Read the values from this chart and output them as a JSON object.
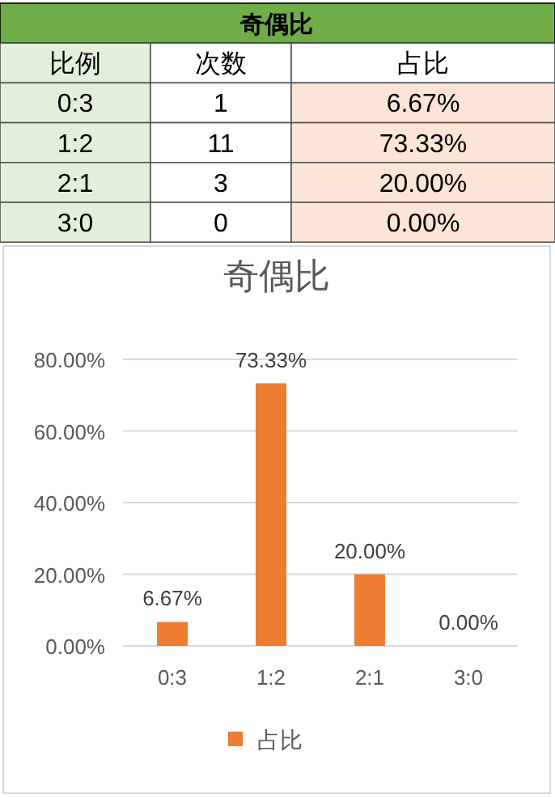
{
  "chart_data": [
    {
      "type": "other",
      "title": "奇偶比",
      "xlabel": "比例",
      "data_labels": true,
      "categories": [
        "0:3",
        "1:2",
        "2:1",
        "3:0"
      ],
      "series": [
        {
          "name": "次数",
          "values": [
            1,
            11,
            3,
            0
          ]
        },
        {
          "name": "占比",
          "color": "#fce4d6",
          "values": [
            6.67,
            73.33,
            20,
            0
          ],
          "value_labels": [
            "6.67%",
            "73.33%",
            "20.00%",
            "0.00%"
          ]
        }
      ]
    },
    {
      "type": "bar",
      "title": "奇偶比",
      "categories": [
        "0:3",
        "1:2",
        "2:1",
        "3:0"
      ],
      "series": [
        {
          "name": "占比",
          "color": "#ed7d31",
          "values": [
            6.67,
            73.33,
            20,
            0
          ],
          "value_labels": [
            "6.67%",
            "73.33%",
            "20.00%",
            "0.00%"
          ]
        }
      ],
      "ylim": [
        0,
        80
      ],
      "yticks": [
        {
          "value": 0,
          "label": "0.00%"
        },
        {
          "value": 20,
          "label": "20.00%"
        },
        {
          "value": 40,
          "label": "40.00%"
        },
        {
          "value": 60,
          "label": "60.00%"
        },
        {
          "value": 80,
          "label": "80.00%"
        }
      ],
      "grid": "y",
      "legend": "bottom"
    }
  ]
}
